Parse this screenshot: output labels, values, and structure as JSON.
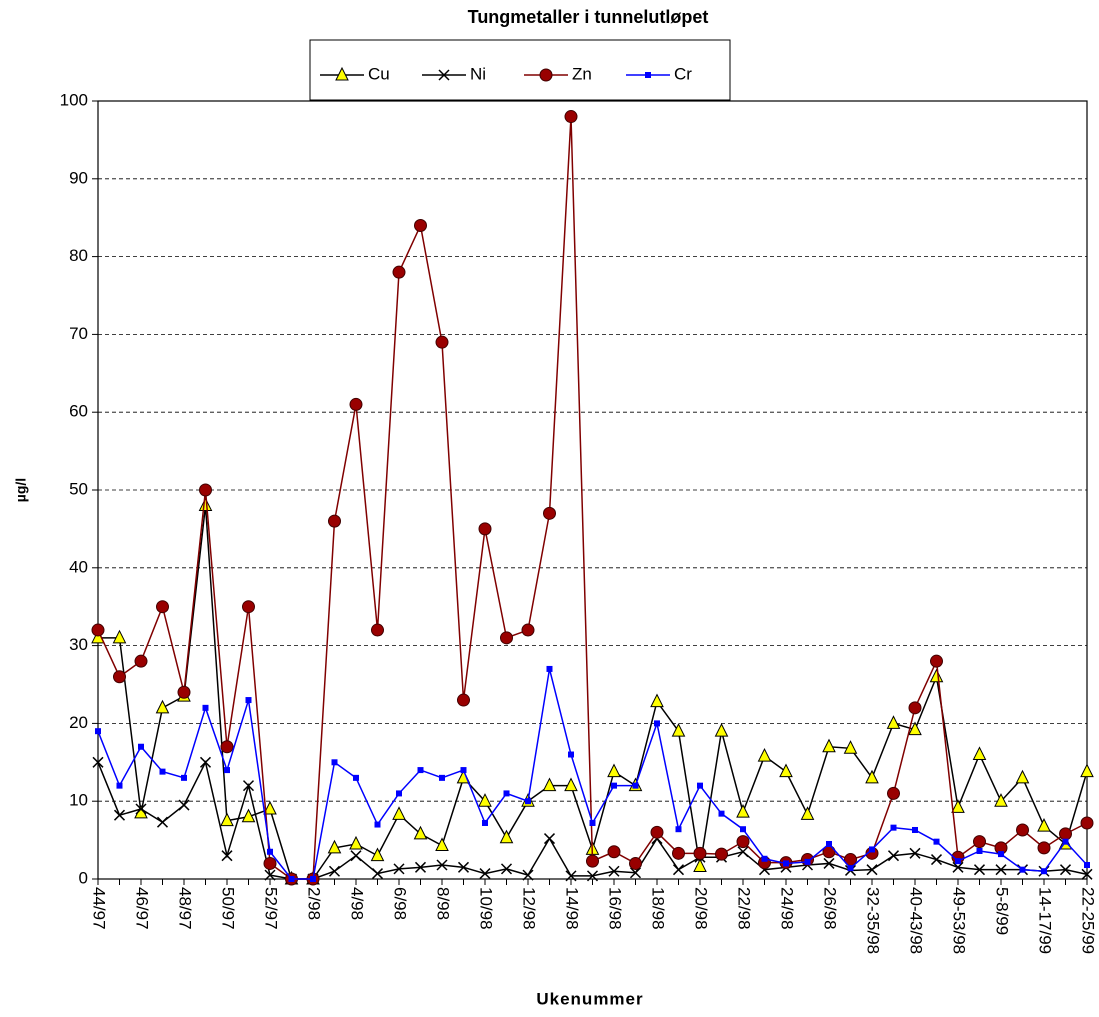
{
  "chart_data": {
    "type": "line",
    "title": "Tungmetaller i tunnelutløpet",
    "x_label": "Ukenummer",
    "y_label": "µg/l",
    "categories": [
      "44/97",
      null,
      "46/97",
      null,
      "48/97",
      null,
      "50/97",
      null,
      "52/97",
      null,
      "2/98",
      null,
      "4/98",
      null,
      "6/98",
      null,
      "8/98",
      null,
      "10/98",
      null,
      "12/98",
      null,
      "14/98",
      null,
      "16/98",
      null,
      "18/98",
      null,
      "20/98",
      null,
      "22/98",
      null,
      "24/98",
      null,
      "26/98",
      null,
      "32-35/98",
      null,
      "40-43/98",
      null,
      "49-53/98",
      null,
      "5-8/99",
      null,
      "14-17/99",
      null,
      "22-25/99"
    ],
    "series": [
      {
        "name": "Cu",
        "color": "#000000",
        "marker": "triangle",
        "marker_color": "#ffff00",
        "values": [
          31,
          31,
          8.5,
          22,
          23.5,
          48,
          7.5,
          8,
          9,
          0,
          0,
          4,
          4.5,
          3,
          8.3,
          5.8,
          4.3,
          13,
          10,
          5.3,
          10,
          12,
          12,
          3.8,
          13.8,
          12,
          22.8,
          19,
          1.6,
          19,
          8.6,
          15.8,
          13.8,
          8.3,
          17,
          16.8,
          13,
          20,
          19.2,
          26,
          9.2,
          16,
          10,
          13,
          6.8,
          4.5,
          13.8
        ]
      },
      {
        "name": "Ni",
        "color": "#000000",
        "marker": "cross",
        "marker_color": "#000000",
        "values": [
          15,
          8.2,
          9,
          7.3,
          9.5,
          15,
          3,
          12,
          0.5,
          0,
          0,
          1,
          3,
          0.7,
          1.3,
          1.5,
          1.8,
          1.5,
          0.7,
          1.3,
          0.5,
          5.2,
          0.4,
          0.4,
          1,
          0.8,
          5.2,
          1.2,
          2.8,
          2.8,
          3.5,
          1.2,
          1.5,
          1.8,
          2,
          1.1,
          1.2,
          3,
          3.3,
          2.5,
          1.5,
          1.2,
          1.2,
          1.2,
          1,
          1.2,
          0.6
        ]
      },
      {
        "name": "Zn",
        "color": "#800000",
        "marker": "circle",
        "marker_color": "#990000",
        "values": [
          32,
          26,
          28,
          35,
          24,
          50,
          17,
          35,
          2,
          0,
          0,
          46,
          61,
          32,
          78,
          84,
          69,
          23,
          45,
          31,
          32,
          47,
          98,
          2.3,
          3.5,
          2,
          6,
          3.3,
          3.3,
          3.2,
          4.8,
          2.1,
          2.1,
          2.5,
          3.5,
          2.5,
          3.3,
          11,
          22,
          28,
          2.8,
          4.8,
          4,
          6.3,
          4,
          5.8,
          7.2
        ]
      },
      {
        "name": "Cr",
        "color": "#0000ff",
        "marker": "square",
        "marker_color": "#0000ff",
        "values": [
          19,
          12,
          17,
          13.8,
          13,
          22,
          14,
          23,
          3.5,
          0,
          0,
          15,
          13,
          7,
          11,
          14,
          13,
          14,
          7.2,
          11,
          10,
          27,
          16,
          7.2,
          12,
          12,
          20,
          6.4,
          12,
          8.4,
          6.4,
          2.6,
          2,
          2.2,
          4.5,
          1.4,
          3.8,
          6.6,
          6.3,
          4.8,
          2.3,
          3.6,
          3.2,
          1.2,
          1.0,
          4.8,
          1.8
        ]
      }
    ],
    "ylim": [
      0,
      100
    ],
    "yticks": [
      0,
      10,
      20,
      30,
      40,
      50,
      60,
      70,
      80,
      90,
      100
    ],
    "grid": true
  }
}
